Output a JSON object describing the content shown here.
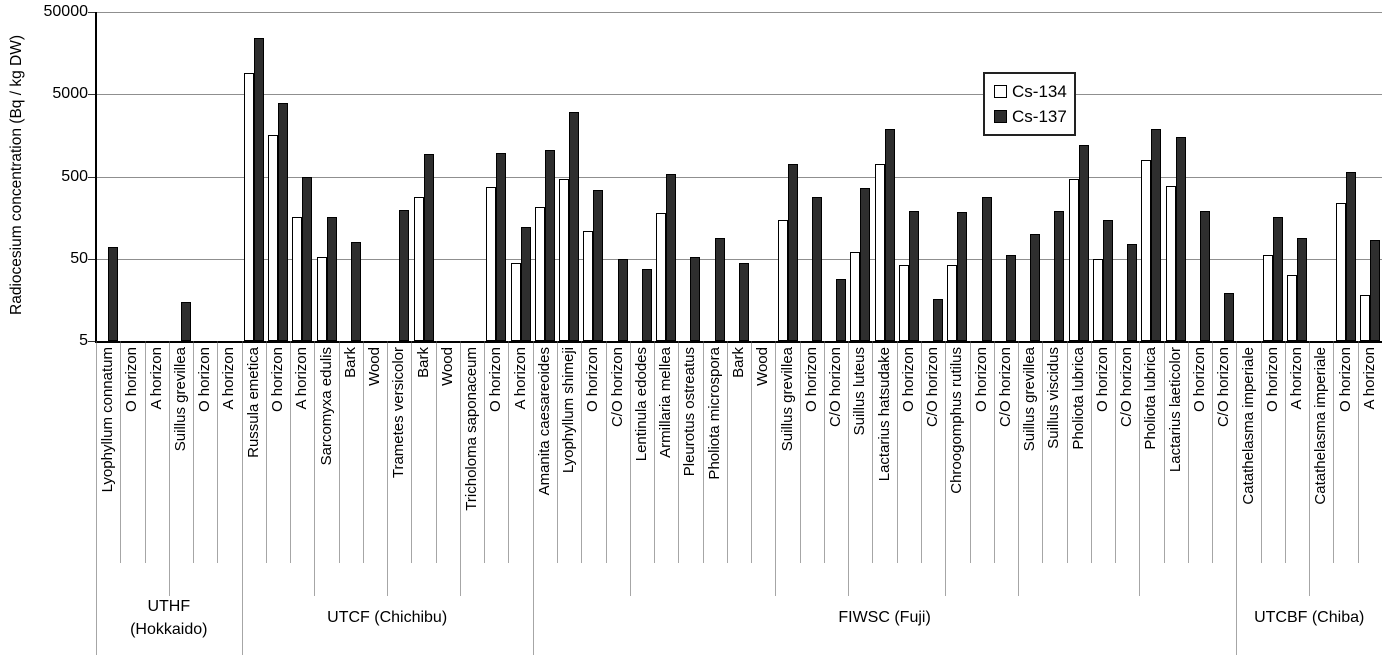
{
  "chart_data": {
    "type": "bar",
    "title": "",
    "ylabel": "Radiocesium concentration (Bq / kg DW)",
    "xlabel": "",
    "y_scale": "log",
    "ylim": [
      5,
      50000
    ],
    "y_ticks": [
      5,
      50,
      500,
      5000,
      50000
    ],
    "grid": "horizontal",
    "legend_position": "top-right-inside",
    "colors": {
      "grid": "#8f8f8f",
      "axis": "#000000",
      "separator": "#a6a6a6",
      "background": "#ffffff"
    },
    "groups": [
      {
        "label": "UTHF\n(Hokkaido)",
        "span": 6
      },
      {
        "label": "UTCF (Chichibu)",
        "span": 12
      },
      {
        "label": "FIWSC (Fuji)",
        "span": 29
      },
      {
        "label": "UTCBF (Chiba)",
        "span": 6
      }
    ],
    "subgroup_separators_after": [
      3,
      9,
      12,
      15,
      22,
      28,
      31,
      35,
      38,
      43,
      50
    ],
    "categories": [
      "Lyophyllum connatum",
      "O horizon",
      "A horizon",
      "Suillus grevillea",
      "O horizon",
      "A horizon",
      "Russula emetica",
      "O horizon",
      "A horizon",
      "Sarcomyxa edulis",
      "Bark",
      "Wood",
      "Trametes versicolor",
      "Bark",
      "Wood",
      "Tricholoma saponaceum",
      "O horizon",
      "A horizon",
      "Amanita caesareoides",
      "Lyophyllum shimeji",
      "O horizon",
      "C/O horizon",
      "Lentinula edodes",
      "Armillaria mellea",
      "Pleurotus ostreatus",
      "Pholiota microspora",
      "Bark",
      "Wood",
      "Suillus grevillea",
      "O horizon",
      "C/O horizon",
      "Suillus luteus",
      "Lactarius hatsudake",
      "O horizon",
      "C/O horizon",
      "Chroogomphus rutilus",
      "O horizon",
      "C/O horizon",
      "Suillus grevillea",
      "Suillus viscidus",
      "Pholiota lubrica",
      "O horizon",
      "C/O horizon",
      "Pholiota lubrica",
      "Lactarius laeticolor",
      "O horizon",
      "C/O horizon",
      "Catathelasma imperiale",
      "O horizon",
      "A horizon",
      "Catathelasma imperiale",
      "O horizon",
      "A horizon"
    ],
    "series": [
      {
        "name": "Cs-134",
        "color": "#ffffff",
        "border": "#000000",
        "values": [
          null,
          null,
          null,
          null,
          null,
          null,
          9000,
          1600,
          160,
          52,
          null,
          null,
          null,
          280,
          null,
          null,
          370,
          45,
          210,
          460,
          110,
          null,
          null,
          180,
          null,
          null,
          null,
          null,
          150,
          null,
          null,
          60,
          700,
          42,
          null,
          42,
          null,
          null,
          null,
          null,
          460,
          50,
          null,
          790,
          380,
          null,
          null,
          null,
          55,
          32,
          null,
          240,
          18
        ]
      },
      {
        "name": "Cs-137",
        "color": "#2e2e2e",
        "border": "#000000",
        "values": [
          70,
          null,
          null,
          15,
          null,
          null,
          24000,
          3900,
          490,
          160,
          80,
          null,
          195,
          950,
          null,
          null,
          960,
          120,
          1050,
          3000,
          340,
          50,
          38,
          540,
          53,
          90,
          44,
          null,
          700,
          280,
          28,
          360,
          1900,
          190,
          16,
          185,
          280,
          55,
          100,
          190,
          1200,
          150,
          75,
          1900,
          1500,
          190,
          19,
          null,
          160,
          90,
          null,
          560,
          85
        ]
      }
    ]
  }
}
